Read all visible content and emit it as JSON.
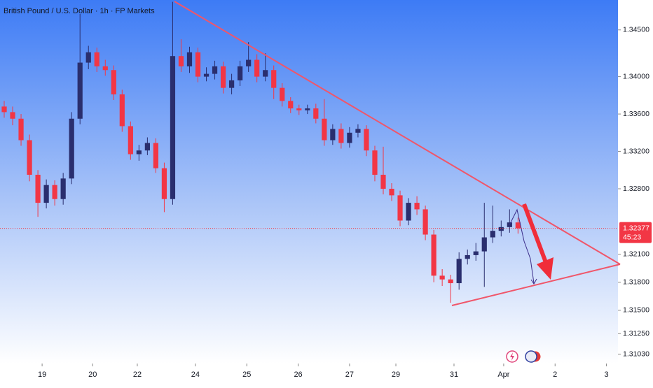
{
  "chart_data": {
    "type": "candlestick",
    "title": "British Pound / U.S. Dollar · 1h · FP Markets",
    "up_color": "#2a2e6e",
    "down_color": "#f23645",
    "open": [
      1.3368,
      1.3362,
      1.3355,
      1.3332,
      1.3295,
      1.3265,
      1.3284,
      1.3269,
      1.3291,
      1.3355,
      1.3415,
      1.3426,
      1.3411,
      1.3407,
      1.3381,
      1.3347,
      1.3317,
      1.3321,
      1.3329,
      1.3302,
      1.3269,
      1.3422,
      1.3411,
      1.3426,
      1.34,
      1.3403,
      1.3411,
      1.3388,
      1.3396,
      1.3411,
      1.3418,
      1.34,
      1.3407,
      1.3388,
      1.3374,
      1.3366,
      1.3364,
      1.3366,
      1.3355,
      1.3332,
      1.3344,
      1.3329,
      1.334,
      1.3344,
      1.3321,
      1.3295,
      1.328,
      1.3273,
      1.3246,
      1.3265,
      1.3258,
      1.3231,
      1.3187,
      1.3183,
      1.3179,
      1.3205,
      1.3209,
      1.3213,
      1.3228,
      1.3235,
      1.3239,
      1.3244
    ],
    "high": [
      1.3374,
      1.3368,
      1.336,
      1.3338,
      1.33,
      1.329,
      1.3289,
      1.3297,
      1.3362,
      1.3467,
      1.3433,
      1.3431,
      1.3418,
      1.3412,
      1.3386,
      1.3352,
      1.3327,
      1.3335,
      1.3334,
      1.3308,
      1.348,
      1.344,
      1.3432,
      1.3431,
      1.341,
      1.3417,
      1.3416,
      1.3403,
      1.3417,
      1.3437,
      1.3424,
      1.3425,
      1.3412,
      1.3393,
      1.3378,
      1.337,
      1.337,
      1.3371,
      1.3376,
      1.3349,
      1.335,
      1.3346,
      1.3349,
      1.3348,
      1.3326,
      1.3325,
      1.3286,
      1.3278,
      1.327,
      1.3272,
      1.3262,
      1.3236,
      1.3194,
      1.3188,
      1.3212,
      1.3215,
      1.3222,
      1.3265,
      1.3262,
      1.3246,
      1.3258,
      1.3249
    ],
    "low": [
      1.3356,
      1.3348,
      1.3326,
      1.3288,
      1.325,
      1.3259,
      1.3262,
      1.3263,
      1.3285,
      1.3349,
      1.3408,
      1.3405,
      1.3401,
      1.3375,
      1.3341,
      1.3311,
      1.331,
      1.3316,
      1.3297,
      1.3255,
      1.3263,
      1.3405,
      1.3404,
      1.3394,
      1.3395,
      1.3397,
      1.3382,
      1.3381,
      1.339,
      1.3405,
      1.3394,
      1.3395,
      1.3376,
      1.3368,
      1.3361,
      1.3359,
      1.336,
      1.335,
      1.3326,
      1.3327,
      1.3323,
      1.3324,
      1.3335,
      1.3315,
      1.3288,
      1.3274,
      1.3267,
      1.324,
      1.3241,
      1.3252,
      1.3225,
      1.318,
      1.3176,
      1.3158,
      1.3172,
      1.3199,
      1.3203,
      1.3175,
      1.3222,
      1.3229,
      1.3233,
      1.3232
    ],
    "close": [
      1.3362,
      1.3355,
      1.3332,
      1.3295,
      1.3265,
      1.3284,
      1.3269,
      1.3291,
      1.3355,
      1.3415,
      1.3426,
      1.3411,
      1.3407,
      1.3381,
      1.3347,
      1.3317,
      1.3321,
      1.3329,
      1.3302,
      1.3269,
      1.3422,
      1.3411,
      1.3426,
      1.34,
      1.3403,
      1.3411,
      1.3388,
      1.3396,
      1.3411,
      1.3418,
      1.34,
      1.3407,
      1.3388,
      1.3374,
      1.3366,
      1.3364,
      1.3366,
      1.3355,
      1.3332,
      1.3344,
      1.3329,
      1.334,
      1.3344,
      1.3321,
      1.3295,
      1.328,
      1.3273,
      1.3246,
      1.3265,
      1.3258,
      1.3231,
      1.3187,
      1.3183,
      1.3179,
      1.3205,
      1.3209,
      1.3213,
      1.3228,
      1.3235,
      1.3239,
      1.3244,
      1.32377
    ],
    "last_price": 1.32377,
    "countdown": "45:23",
    "last_color": "#f23645",
    "ylim": [
      1.3093,
      1.3482
    ],
    "yticks": [
      {
        "value": 1.345,
        "label": "1.34500"
      },
      {
        "value": 1.34,
        "label": "1.34000"
      },
      {
        "value": 1.336,
        "label": "1.33600"
      },
      {
        "value": 1.332,
        "label": "1.33200"
      },
      {
        "value": 1.328,
        "label": "1.32800"
      },
      {
        "value": 1.321,
        "label": "1.32100"
      },
      {
        "value": 1.318,
        "label": "1.31800"
      },
      {
        "value": 1.315,
        "label": "1.31500"
      },
      {
        "value": 1.3125,
        "label": "1.31250"
      },
      {
        "value": 1.3103,
        "label": "1.31030"
      }
    ],
    "xlim": [
      0,
      73.2
    ],
    "xticks": [
      {
        "value": 5,
        "label": "19"
      },
      {
        "value": 11,
        "label": "20"
      },
      {
        "value": 16.3,
        "label": "22"
      },
      {
        "value": 23.2,
        "label": "24"
      },
      {
        "value": 29.3,
        "label": "25"
      },
      {
        "value": 35.4,
        "label": "26"
      },
      {
        "value": 41.5,
        "label": "27"
      },
      {
        "value": 47,
        "label": "29"
      },
      {
        "value": 53.9,
        "label": "31"
      },
      {
        "value": 59.8,
        "label": "Apr"
      },
      {
        "value": 65.9,
        "label": "2"
      },
      {
        "value": 72,
        "label": "3"
      }
    ]
  }
}
